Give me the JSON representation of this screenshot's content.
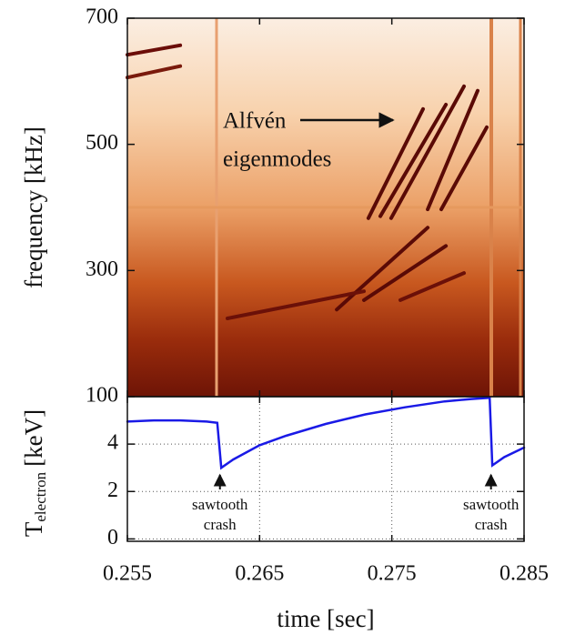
{
  "chart_data": [
    {
      "type": "line",
      "ylabel": "frequency [kHz]",
      "annotation": [
        "Alfvén",
        "eigenmodes"
      ],
      "xlim": [
        0.255,
        0.285
      ],
      "ylim": [
        100,
        700
      ],
      "yticks": [
        100,
        300,
        500,
        700
      ],
      "series": [
        {
          "color": "#6b0d08",
          "x": [
            0.255,
            0.259
          ],
          "values": [
            642,
            657
          ]
        },
        {
          "color": "#7a1a0c",
          "x": [
            0.255,
            0.259
          ],
          "values": [
            606,
            624
          ]
        },
        {
          "color": "#5a0a06",
          "x": [
            0.27323,
            0.27736
          ],
          "values": [
            383,
            556
          ]
        },
        {
          "color": "#5a0a06",
          "x": [
            0.27413,
            0.27909
          ],
          "values": [
            386,
            563
          ]
        },
        {
          "color": "#5a0a06",
          "x": [
            0.27495,
            0.28046
          ],
          "values": [
            383,
            592
          ]
        },
        {
          "color": "#5a0a06",
          "x": [
            0.27771,
            0.28149
          ],
          "values": [
            397,
            585
          ]
        },
        {
          "color": "#5a0a06",
          "x": [
            0.27874,
            0.28218
          ],
          "values": [
            397,
            527
          ]
        },
        {
          "color": "#5a0a06",
          "x": [
            0.27083,
            0.27771
          ],
          "values": [
            238,
            368
          ]
        },
        {
          "color": "#5a0a06",
          "x": [
            0.27289,
            0.27909
          ],
          "values": [
            253,
            339
          ]
        },
        {
          "color": "#6b1008",
          "x": [
            0.27564,
            0.28046
          ],
          "values": [
            253,
            296
          ]
        },
        {
          "color": "#6b1008",
          "x": [
            0.26257,
            0.27289
          ],
          "values": [
            224,
            267
          ]
        }
      ]
    },
    {
      "type": "line",
      "ylabel": "T",
      "ylabel_sub": "electron",
      "ylabel_unit": "[keV]",
      "xlabel": "time [sec]",
      "xlim": [
        0.255,
        0.285
      ],
      "ylim": [
        -0.1,
        6.0
      ],
      "xticks": [
        0.255,
        0.265,
        0.275,
        0.285
      ],
      "yticks": [
        0,
        2,
        4
      ],
      "grid": true,
      "annotations": [
        {
          "x": 0.262,
          "text": [
            "sawtooth",
            "crash"
          ]
        },
        {
          "x": 0.2825,
          "text": [
            "sawtooth",
            "crash"
          ]
        }
      ],
      "series": [
        {
          "color": "#1a1ae6",
          "x": [
            0.255,
            0.257,
            0.259,
            0.261,
            0.2618,
            0.2621,
            0.263,
            0.265,
            0.267,
            0.27,
            0.273,
            0.276,
            0.279,
            0.281,
            0.2824,
            0.2826,
            0.2835,
            0.285
          ],
          "values": [
            4.95,
            5.0,
            5.0,
            4.95,
            4.9,
            3.0,
            3.35,
            3.95,
            4.35,
            4.85,
            5.25,
            5.55,
            5.8,
            5.9,
            5.95,
            3.1,
            3.45,
            3.85
          ]
        }
      ]
    }
  ]
}
